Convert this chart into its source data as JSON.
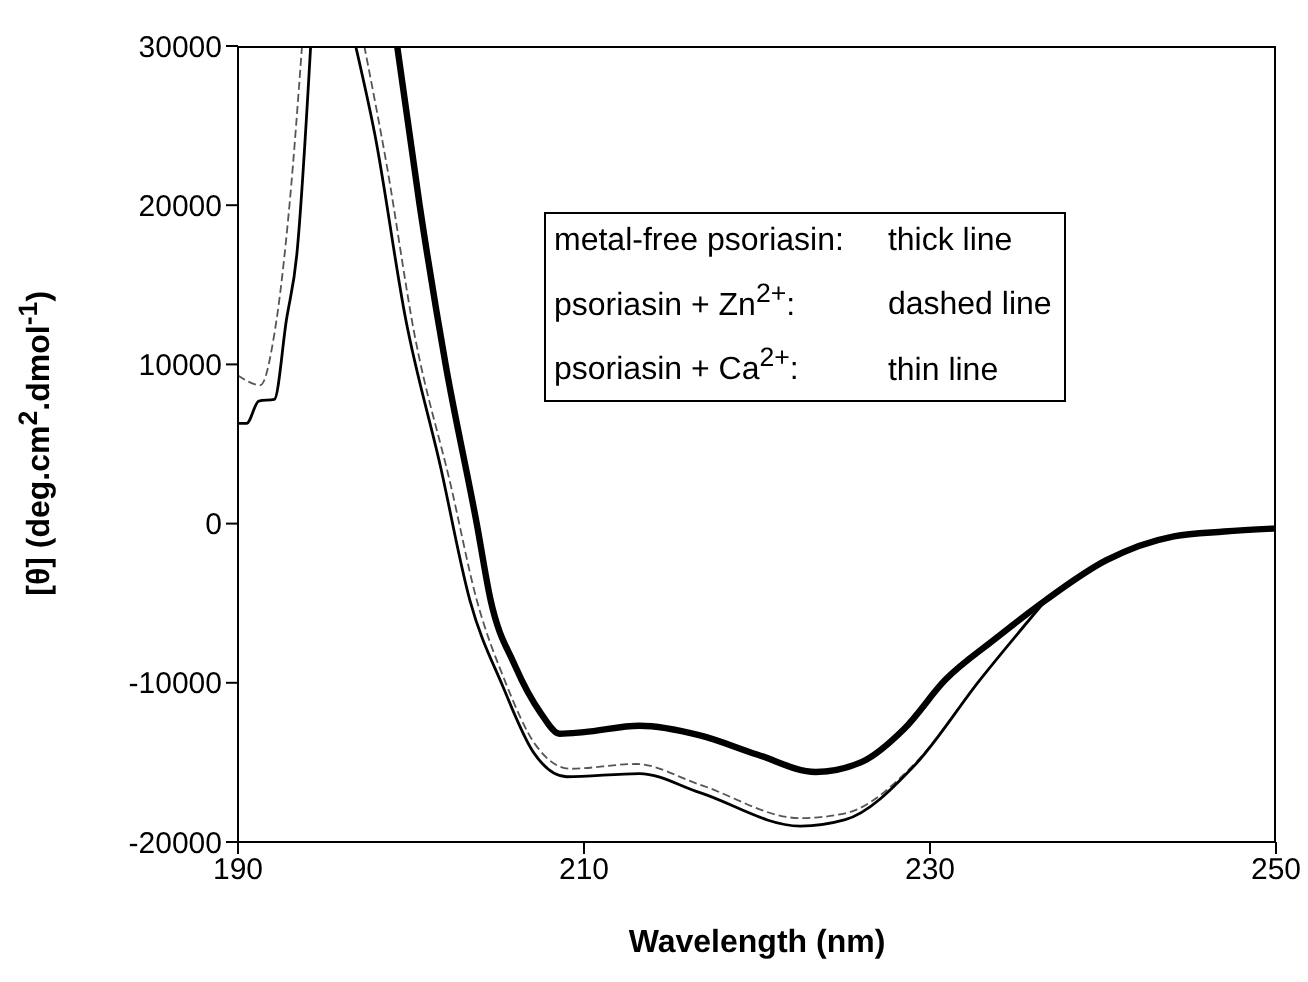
{
  "chart_data": {
    "type": "line",
    "xlabel": "Wavelength (nm)",
    "ylabel": "[θ] (deg.cm$^{2}$.dmol$^{-1}$)",
    "xlim": [
      190,
      250
    ],
    "xticks": [
      190,
      210,
      230,
      250
    ],
    "ylim": [
      -20000,
      30000
    ],
    "yticks": [
      -20000,
      -10000,
      0,
      10000,
      20000,
      30000
    ],
    "marker": "none",
    "annotations": [
      "metal-free psoriasin:",
      "thick line",
      "psoriasin + Zn$^{2+}$:",
      "dashed line",
      "psoriasin + Ca$^{2+}$:",
      "thin line"
    ],
    "series": [
      {
        "color": "#000000",
        "line_style": "solid",
        "x": [
          199.2,
          200.5,
          202.0,
          203.8,
          204.6,
          206.0,
          207.5,
          208.6,
          210.0,
          213.2,
          216.7,
          220.0,
          223.4,
          226.0,
          228.5,
          230.9,
          233.7,
          236.7,
          240.2,
          244.1,
          247.0,
          250.0
        ],
        "values": [
          30000,
          20000,
          10000,
          0,
          -4800,
          -8900,
          -11900,
          -13200,
          -13100,
          -12700,
          -13300,
          -14500,
          -15600,
          -15000,
          -12900,
          -9800,
          -7300,
          -4800,
          -2300,
          -800,
          -500,
          -300
        ]
      },
      {
        "color": "#555555",
        "line_style": "dashed",
        "x": [
          190.0,
          191.3,
          192.1,
          193.0,
          193.7,
          195.5,
          197.3,
          198.6,
          200.2,
          202.3,
          203.8,
          205.4,
          207.2,
          209.2,
          213.0,
          216.7,
          222.5,
          225.1,
          229.1,
          232.9,
          236.7
        ],
        "values": [
          9300,
          8700,
          11900,
          20300,
          30000,
          null,
          30000,
          22500,
          11900,
          2400,
          -4800,
          -9800,
          -13900,
          -15400,
          -15100,
          -16400,
          -18500,
          -18200,
          -15100,
          -9800,
          -4800
        ]
      },
      {
        "color": "#000000",
        "line_style": "solid",
        "x": [
          190.0,
          190.5,
          191.2,
          192.1,
          192.8,
          193.4,
          194.2,
          195.5,
          196.8,
          197.9,
          199.7,
          201.7,
          203.4,
          205.3,
          207.1,
          209.0,
          213.2,
          216.7,
          222.5,
          225.1,
          229.1,
          232.9,
          236.7
        ],
        "values": [
          6300,
          6300,
          7700,
          7800,
          12800,
          16900,
          30000,
          null,
          30000,
          24500,
          12800,
          3600,
          -4800,
          -10200,
          -14400,
          -15900,
          -15700,
          -16900,
          -19000,
          -18600,
          -15200,
          -9800,
          -4800
        ]
      }
    ]
  }
}
